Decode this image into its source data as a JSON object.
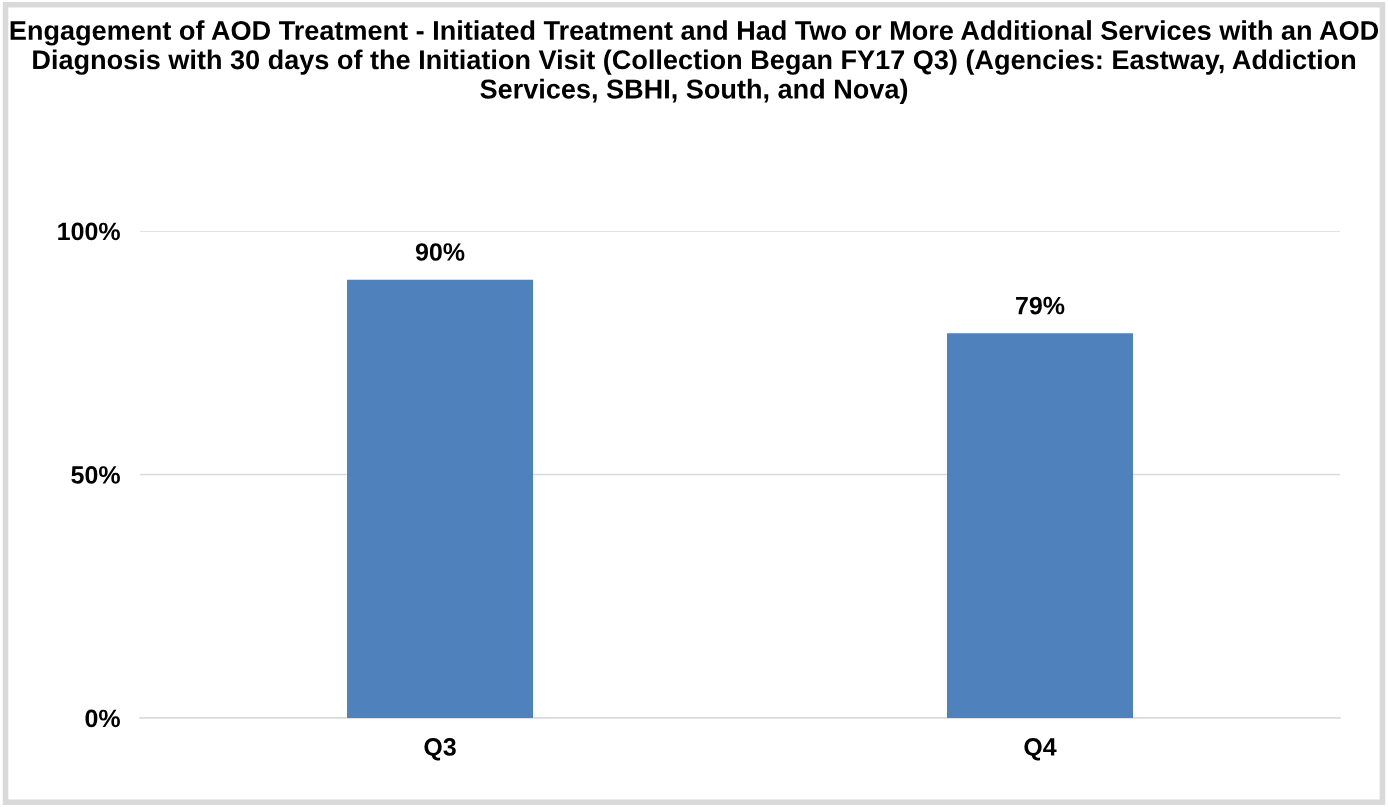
{
  "chart_data": {
    "type": "bar",
    "title": "Engagement of AOD Treatment - Initiated Treatment and Had Two or More Additional Services with an AOD Diagnosis with 30 days of the Initiation Visit (Collection Began FY17 Q3) (Agencies: Eastway, Addiction Services, SBHI, South, and Nova)",
    "categories": [
      "Q3",
      "Q4"
    ],
    "values": [
      90,
      79
    ],
    "value_labels": [
      "90%",
      "79%"
    ],
    "color": "#4f81bd",
    "ylim": [
      0,
      100
    ],
    "yticks": [
      {
        "value": 0,
        "label": "0%"
      },
      {
        "value": 50,
        "label": "50%"
      },
      {
        "value": 100,
        "label": "100%"
      }
    ],
    "grid": "y",
    "legend": false
  }
}
